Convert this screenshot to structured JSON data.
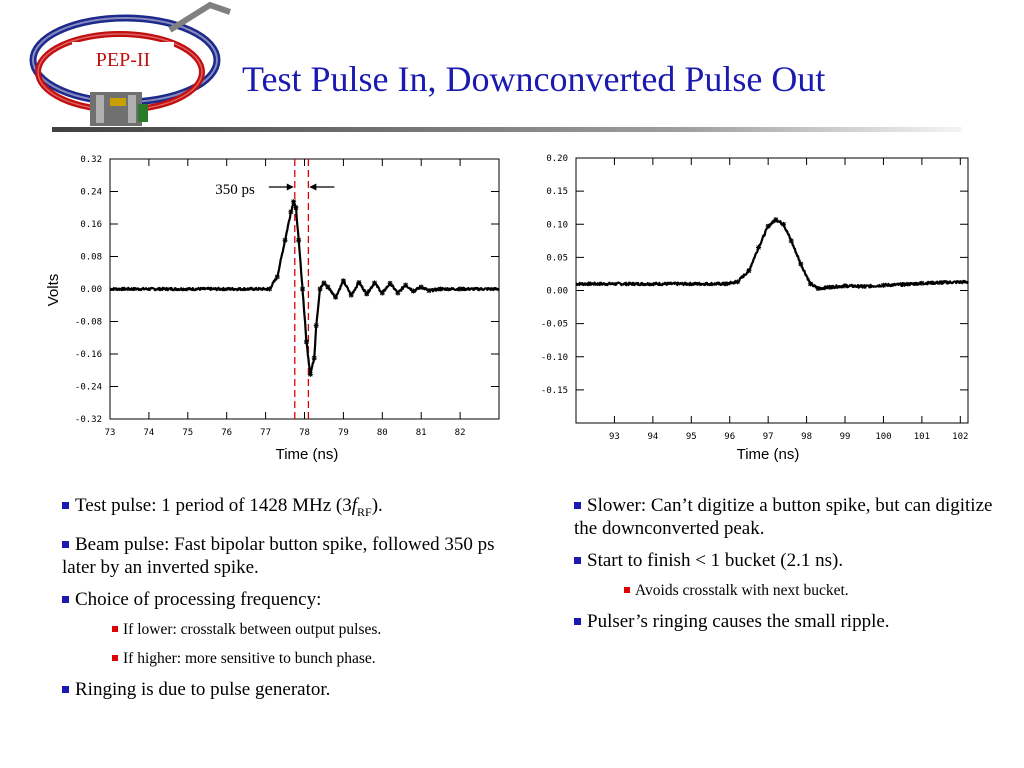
{
  "slide": {
    "title": "Test Pulse In, Downconverted Pulse Out",
    "logo_text": "PEP-II"
  },
  "colors": {
    "title": "#1a1ab0",
    "bullet_l1": "#1a1ab0",
    "bullet_l2": "#e00000",
    "marker_lines": "#e00000",
    "rule": "#505050"
  },
  "bullets_left": [
    {
      "level": 1,
      "text": "Test pulse: 1 period of 1428 MHz (3",
      "italic": "f",
      "sub": "RF",
      "tail": ")."
    },
    {
      "level": 1,
      "text": "Beam pulse: Fast bipolar button spike, followed 350 ps later by an inverted spike."
    },
    {
      "level": 1,
      "text": "Choice of processing frequency:"
    },
    {
      "level": 2,
      "text": "If lower: crosstalk between output pulses."
    },
    {
      "level": 2,
      "text": "If higher: more sensitive to bunch phase."
    },
    {
      "level": 1,
      "text": "Ringing is due to pulse generator."
    }
  ],
  "bullets_right": [
    {
      "level": 1,
      "text": "Slower: Can’t digitize a button spike, but can digitize the downconverted peak."
    },
    {
      "level": 1,
      "text": "Start to finish < 1 bucket (2.1 ns)."
    },
    {
      "level": 2,
      "text": "Avoids crosstalk with next bucket."
    },
    {
      "level": 1,
      "text": "Pulser’s ringing causes the small ripple."
    }
  ],
  "chart_data": [
    {
      "type": "line",
      "xlabel": "Time (ns)",
      "ylabel": "Volts",
      "xlim": [
        73,
        83
      ],
      "ylim": [
        -0.32,
        0.32
      ],
      "xticks": [
        "73",
        "74",
        "75",
        "76",
        "77",
        "78",
        "79",
        "80",
        "81",
        "82"
      ],
      "yticks": [
        "0.32",
        "0.24",
        "0.16",
        "0.08",
        "0.00",
        "-0.08",
        "-0.16",
        "-0.24",
        "-0.32"
      ],
      "annotation": "350 ps",
      "marker_lines_x": [
        77.75,
        78.1
      ],
      "series": [
        {
          "x": [
            73,
            77.1,
            77.3,
            77.5,
            77.65,
            77.72,
            77.78,
            77.85,
            77.95,
            78.05,
            78.15,
            78.25,
            78.3,
            78.4,
            78.5,
            78.6,
            78.8,
            79.0,
            79.2,
            79.4,
            79.6,
            79.8,
            80.0,
            80.2,
            80.4,
            80.6,
            80.8,
            81.0,
            81.2,
            81.5,
            82.0,
            83
          ],
          "y": [
            0.0,
            0.0,
            0.03,
            0.12,
            0.19,
            0.215,
            0.2,
            0.12,
            0.0,
            -0.13,
            -0.21,
            -0.17,
            -0.09,
            0.0,
            0.015,
            0.005,
            -0.02,
            0.02,
            -0.015,
            0.016,
            -0.012,
            0.015,
            -0.01,
            0.014,
            -0.01,
            0.01,
            -0.005,
            0.005,
            -0.004,
            0.0,
            0.0,
            0.0
          ]
        }
      ]
    },
    {
      "type": "line",
      "xlabel": "Time (ns)",
      "ylabel": "",
      "xlim": [
        92,
        102.2
      ],
      "ylim": [
        -0.2,
        0.2
      ],
      "xticks": [
        "93",
        "94",
        "95",
        "96",
        "97",
        "98",
        "99",
        "100",
        "101",
        "102"
      ],
      "yticks": [
        "0.20",
        "0.15",
        "0.10",
        "0.05",
        "0.00",
        "-0.05",
        "-0.10",
        "-0.15"
      ],
      "series": [
        {
          "x": [
            92,
            95.9,
            96.2,
            96.5,
            96.75,
            97.0,
            97.2,
            97.4,
            97.6,
            97.85,
            98.1,
            98.3,
            98.6,
            99.0,
            99.5,
            100.0,
            100.5,
            101.0,
            101.5,
            102.2
          ],
          "y": [
            0.01,
            0.01,
            0.013,
            0.03,
            0.065,
            0.097,
            0.107,
            0.1,
            0.075,
            0.04,
            0.01,
            0.003,
            0.005,
            0.007,
            0.006,
            0.008,
            0.009,
            0.011,
            0.012,
            0.013
          ]
        }
      ]
    }
  ]
}
